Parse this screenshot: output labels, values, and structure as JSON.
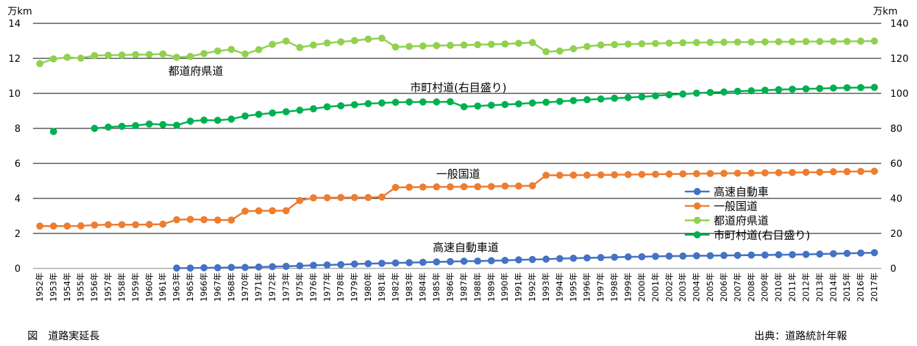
{
  "caption": "図　道路実延長",
  "source": "出典：道路統計年報",
  "chart_data": {
    "type": "line",
    "title": "",
    "y_unit_left": "万km",
    "y_unit_right": "万km",
    "ylim_left": [
      0,
      14
    ],
    "yticks_left": [
      0,
      2,
      4,
      6,
      8,
      10,
      12,
      14
    ],
    "ylim_right": [
      0,
      140
    ],
    "yticks_right": [
      0,
      20,
      40,
      60,
      80,
      100,
      120,
      140
    ],
    "grid": "horizontal",
    "legend_position": "lower-right",
    "categories": [
      "1952年",
      "1953年",
      "1954年",
      "1955年",
      "1956年",
      "1957年",
      "1958年",
      "1959年",
      "1960年",
      "1961年",
      "1963年",
      "1965年",
      "1966年",
      "1967年",
      "1968年",
      "1970年",
      "1971年",
      "1972年",
      "1973年",
      "1975年",
      "1976年",
      "1977年",
      "1978年",
      "1979年",
      "1980年",
      "1981年",
      "1982年",
      "1983年",
      "1984年",
      "1985年",
      "1986年",
      "1987年",
      "1988年",
      "1989年",
      "1990年",
      "1991年",
      "1992年",
      "1993年",
      "1994年",
      "1995年",
      "1996年",
      "1997年",
      "1998年",
      "1999年",
      "2000年",
      "2001年",
      "2002年",
      "2003年",
      "2004年",
      "2005年",
      "2006年",
      "2007年",
      "2008年",
      "2009年",
      "2010年",
      "2011年",
      "2012年",
      "2013年",
      "2014年",
      "2015年",
      "2016年",
      "2017年"
    ],
    "series": [
      {
        "name": "高速自動車",
        "annotation": "高速自動車道",
        "axis": "left",
        "color": "#4472C4",
        "values": [
          null,
          null,
          null,
          null,
          null,
          null,
          null,
          null,
          null,
          null,
          0.02,
          0.02,
          0.04,
          0.04,
          0.06,
          0.06,
          0.08,
          0.1,
          0.12,
          0.15,
          0.18,
          0.2,
          0.22,
          0.25,
          0.27,
          0.29,
          0.31,
          0.33,
          0.35,
          0.37,
          0.39,
          0.41,
          0.42,
          0.44,
          0.46,
          0.49,
          0.51,
          0.53,
          0.56,
          0.58,
          0.6,
          0.62,
          0.64,
          0.66,
          0.67,
          0.69,
          0.7,
          0.71,
          0.72,
          0.73,
          0.74,
          0.75,
          0.76,
          0.77,
          0.78,
          0.79,
          0.8,
          0.82,
          0.84,
          0.86,
          0.88,
          0.9
        ]
      },
      {
        "name": "一般国道",
        "annotation": "一般国道",
        "axis": "left",
        "color": "#ED7D31",
        "values": [
          2.42,
          2.42,
          2.42,
          2.43,
          2.48,
          2.5,
          2.5,
          2.5,
          2.51,
          2.53,
          2.78,
          2.8,
          2.79,
          2.76,
          2.76,
          3.27,
          3.29,
          3.3,
          3.3,
          3.88,
          4.03,
          4.04,
          4.05,
          4.05,
          4.05,
          4.08,
          4.63,
          4.64,
          4.65,
          4.66,
          4.66,
          4.67,
          4.67,
          4.68,
          4.7,
          4.71,
          4.72,
          5.32,
          5.32,
          5.33,
          5.33,
          5.34,
          5.35,
          5.36,
          5.37,
          5.38,
          5.39,
          5.4,
          5.41,
          5.42,
          5.43,
          5.44,
          5.45,
          5.46,
          5.47,
          5.48,
          5.49,
          5.5,
          5.52,
          5.53,
          5.54,
          5.55
        ]
      },
      {
        "name": "都道府県道",
        "annotation": "都道府県道",
        "axis": "left",
        "color": "#92D050",
        "values": [
          11.7,
          11.97,
          12.06,
          12.01,
          12.16,
          12.18,
          12.19,
          12.21,
          12.22,
          12.25,
          12.06,
          12.11,
          12.28,
          12.42,
          12.51,
          12.25,
          12.5,
          12.8,
          12.99,
          12.62,
          12.76,
          12.88,
          12.94,
          13.01,
          13.1,
          13.15,
          12.65,
          12.68,
          12.71,
          12.73,
          12.74,
          12.76,
          12.78,
          12.8,
          12.82,
          12.86,
          12.9,
          12.38,
          12.42,
          12.55,
          12.68,
          12.76,
          12.79,
          12.81,
          12.83,
          12.85,
          12.87,
          12.89,
          12.9,
          12.91,
          12.92,
          12.93,
          12.93,
          12.94,
          12.95,
          12.95,
          12.96,
          12.96,
          12.97,
          12.97,
          12.98,
          12.99
        ]
      },
      {
        "name": "市町村道(右目盛り)",
        "annotation": "市町村道(右目盛り)",
        "axis": "right",
        "color": "#00B050",
        "values": [
          null,
          78.2,
          null,
          null,
          80.0,
          80.7,
          81.2,
          81.6,
          82.5,
          82.2,
          81.8,
          84.1,
          84.7,
          84.6,
          85.3,
          87.1,
          88.0,
          88.8,
          89.5,
          90.4,
          91.2,
          92.3,
          92.9,
          93.5,
          94.1,
          94.5,
          94.9,
          95.1,
          95.1,
          95.1,
          95.2,
          92.4,
          92.8,
          93.2,
          93.6,
          94.0,
          94.5,
          94.9,
          95.4,
          95.9,
          96.4,
          96.8,
          97.2,
          97.6,
          98.0,
          98.6,
          99.2,
          99.6,
          100.1,
          100.5,
          100.8,
          101.2,
          101.5,
          101.8,
          102.1,
          102.4,
          102.6,
          102.8,
          103.0,
          103.2,
          103.3,
          103.4
        ]
      }
    ]
  }
}
